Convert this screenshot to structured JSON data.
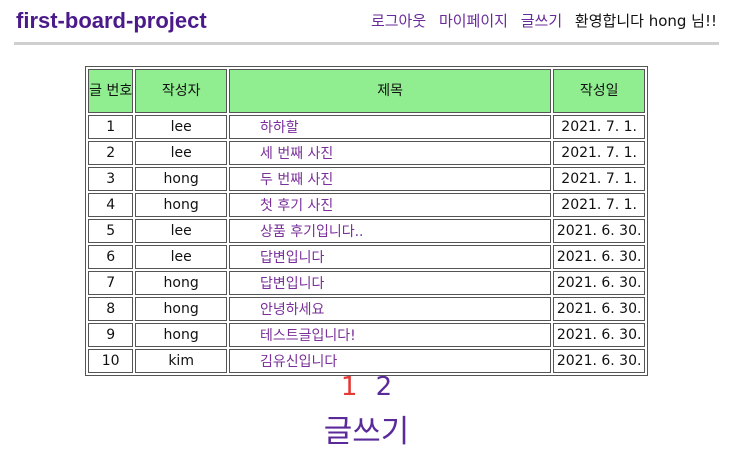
{
  "header": {
    "brand": "first-board-project",
    "nav": {
      "logout": "로그아웃",
      "mypage": "마이페이지",
      "write": "글쓰기",
      "welcome": "환영합니다 hong 님!!"
    }
  },
  "table": {
    "columns": [
      "글 번호",
      "작성자",
      "제목",
      "작성일"
    ],
    "rows": [
      {
        "no": "1",
        "author": "lee",
        "title": "하하할",
        "date": "2021. 7. 1."
      },
      {
        "no": "2",
        "author": "lee",
        "title": "세 번째 사진",
        "date": "2021. 7. 1."
      },
      {
        "no": "3",
        "author": "hong",
        "title": "두 번째 사진",
        "date": "2021. 7. 1."
      },
      {
        "no": "4",
        "author": "hong",
        "title": "첫 후기 사진",
        "date": "2021. 7. 1."
      },
      {
        "no": "5",
        "author": "lee",
        "title": "상품 후기입니다..",
        "date": "2021. 6. 30."
      },
      {
        "no": "6",
        "author": "lee",
        "title": "답변입니다",
        "date": "2021. 6. 30."
      },
      {
        "no": "7",
        "author": "hong",
        "title": "답변입니다",
        "date": "2021. 6. 30."
      },
      {
        "no": "8",
        "author": "hong",
        "title": "안녕하세요",
        "date": "2021. 6. 30."
      },
      {
        "no": "9",
        "author": "hong",
        "title": "테스트글입니다!",
        "date": "2021. 6. 30."
      },
      {
        "no": "10",
        "author": "kim",
        "title": "김유신입니다",
        "date": "2021. 6. 30."
      }
    ]
  },
  "pagination": {
    "current": "1",
    "next": "2"
  },
  "write_link": "글쓰기",
  "colors": {
    "brand": "#4b1a8a",
    "link": "#7a2f9a",
    "header_bg": "#90ee90",
    "current_page": "#e53935"
  }
}
